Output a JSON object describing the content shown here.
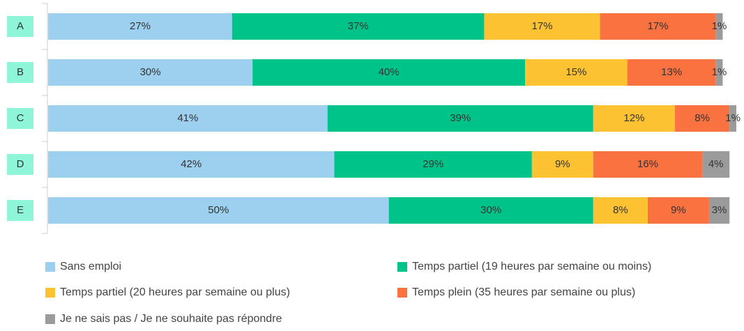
{
  "chart_data": {
    "type": "stacked-bar-horizontal",
    "categories": [
      "A",
      "B",
      "C",
      "D",
      "E"
    ],
    "series": [
      {
        "name": "Sans emploi",
        "color": "#9dcfee",
        "values": [
          27,
          30,
          41,
          42,
          50
        ],
        "value_labels": [
          "27%",
          "30%",
          "41%",
          "42%",
          "50%"
        ]
      },
      {
        "name": "Temps partiel (19 heures par semaine ou moins)",
        "color": "#00c389",
        "values": [
          37,
          40,
          39,
          29,
          30
        ],
        "value_labels": [
          "37%",
          "40%",
          "39%",
          "29%",
          "30%"
        ]
      },
      {
        "name": "Temps partiel (20 heures par semaine ou plus)",
        "color": "#fdc232",
        "values": [
          17,
          15,
          12,
          9,
          8
        ],
        "value_labels": [
          "17%",
          "15%",
          "12%",
          "9%",
          "8%"
        ]
      },
      {
        "name": "Temps plein (35 heures par semaine ou plus)",
        "color": "#f97240",
        "values": [
          17,
          13,
          8,
          16,
          9
        ],
        "value_labels": [
          "17%",
          "13%",
          "8%",
          "16%",
          "9%"
        ]
      },
      {
        "name": "Je ne sais pas / Je ne souhaite pas répondre",
        "color": "#9b9b9b",
        "values": [
          1,
          1,
          1,
          4,
          3
        ],
        "value_labels": [
          "1%",
          "1%",
          "1%",
          "4%",
          "3%"
        ]
      }
    ]
  }
}
